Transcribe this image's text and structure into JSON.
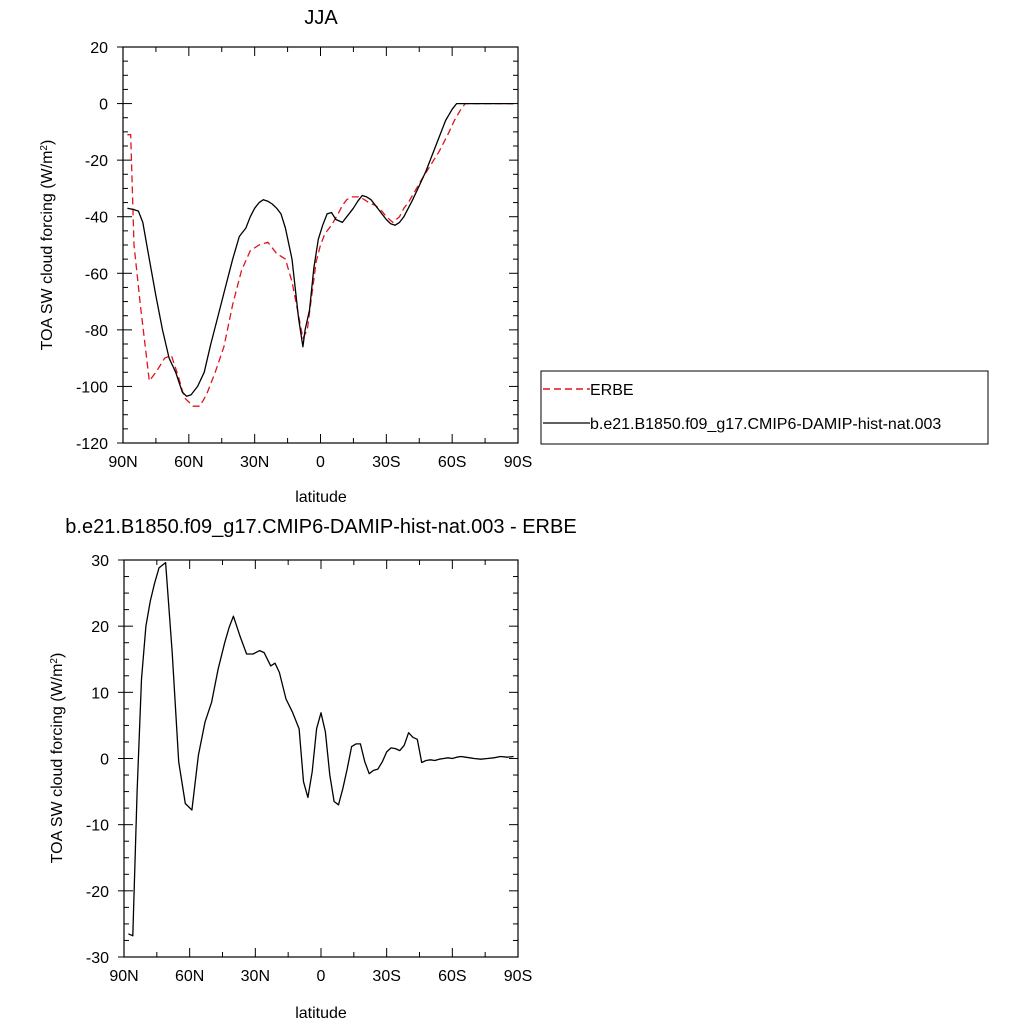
{
  "chart_data": [
    {
      "type": "line",
      "title": "JJA",
      "xlabel": "latitude",
      "ylabel_main": "TOA SW cloud forcing (W/m",
      "ylabel_sup": "2",
      "ylabel_close": ")",
      "xlim": [
        90,
        -90
      ],
      "ylim": [
        -120,
        20
      ],
      "x_ticks": [
        {
          "value": 90,
          "label": "90N"
        },
        {
          "value": 60,
          "label": "60N"
        },
        {
          "value": 30,
          "label": "30N"
        },
        {
          "value": 0,
          "label": "0"
        },
        {
          "value": -30,
          "label": "30S"
        },
        {
          "value": -60,
          "label": "60S"
        },
        {
          "value": -90,
          "label": "90S"
        }
      ],
      "y_ticks": [
        {
          "value": 20,
          "label": "20"
        },
        {
          "value": 0,
          "label": "0"
        },
        {
          "value": -20,
          "label": "-20"
        },
        {
          "value": -40,
          "label": "-40"
        },
        {
          "value": -60,
          "label": "-60"
        },
        {
          "value": -80,
          "label": "-80"
        },
        {
          "value": -100,
          "label": "-100"
        },
        {
          "value": -120,
          "label": "-120"
        }
      ],
      "legend_position": "right, outside plot",
      "series": [
        {
          "name": "ERBE",
          "color": "#e0141e",
          "dash": "dashed",
          "x": [
            88,
            86.5,
            85,
            82,
            78,
            75,
            71,
            68,
            65,
            62,
            58,
            55,
            52,
            48,
            44,
            40,
            36,
            32,
            28,
            24,
            20,
            16,
            13,
            10,
            8,
            6,
            4,
            2,
            0,
            -2,
            -5,
            -8,
            -10,
            -12,
            -14,
            -16,
            -18,
            -20,
            -22,
            -25,
            -28,
            -30,
            -33,
            -36,
            -38,
            -40,
            -43,
            -46,
            -50,
            -54,
            -58,
            -61,
            -64,
            -66,
            -68,
            -70,
            -73,
            -76,
            -80,
            -84,
            -88
          ],
          "y": [
            -11,
            -11,
            -50,
            -72,
            -98,
            -95,
            -90,
            -89,
            -96,
            -104,
            -107,
            -107,
            -103,
            -95,
            -86,
            -71,
            -59,
            -52,
            -50,
            -49,
            -53,
            -55,
            -63,
            -75,
            -83,
            -80,
            -68,
            -56,
            -50,
            -46,
            -43,
            -39,
            -36,
            -34,
            -33,
            -33,
            -33,
            -34,
            -35,
            -36,
            -38,
            -40,
            -42,
            -40,
            -37,
            -35,
            -31,
            -27,
            -22,
            -17,
            -11,
            -6,
            -2,
            0,
            0,
            0,
            0,
            0,
            0,
            0,
            0
          ]
        },
        {
          "name": "b.e21.B1850.f09_g17.CMIP6-DAMIP-hist-nat.003",
          "color": "#000000",
          "dash": "solid",
          "x": [
            88,
            85,
            83,
            81,
            78,
            75,
            72,
            69,
            66,
            63,
            61,
            59,
            56,
            53,
            50,
            47,
            44,
            40,
            37,
            34,
            32,
            30,
            28,
            26,
            24,
            22,
            20,
            18,
            16,
            13,
            10,
            8,
            7,
            5,
            3,
            1,
            -1,
            -3,
            -5,
            -7,
            -10,
            -12,
            -15,
            -17,
            -19,
            -21,
            -23,
            -25,
            -27,
            -30,
            -32,
            -34,
            -36,
            -38,
            -40,
            -42,
            -45,
            -48,
            -51,
            -54,
            -57,
            -60,
            -62,
            -64,
            -66,
            -68,
            -70,
            -73,
            -76,
            -80,
            -84,
            -88
          ],
          "y": [
            -37,
            -37.5,
            -38,
            -42,
            -55,
            -68,
            -80,
            -90,
            -95,
            -102,
            -103.5,
            -103,
            -100,
            -95,
            -85,
            -76,
            -67,
            -55,
            -47,
            -44,
            -40,
            -37,
            -35,
            -34,
            -34.5,
            -35.5,
            -37,
            -39,
            -44,
            -55,
            -76,
            -86,
            -80,
            -73,
            -58,
            -48,
            -43,
            -39,
            -38.5,
            -41,
            -42,
            -40,
            -37,
            -34.5,
            -32.5,
            -33,
            -34,
            -36,
            -38,
            -41,
            -42.5,
            -43,
            -42,
            -40,
            -37,
            -34,
            -29,
            -24,
            -18,
            -12,
            -6,
            -2,
            0,
            0,
            0,
            0,
            0,
            0,
            0,
            0,
            0,
            0
          ]
        }
      ]
    },
    {
      "type": "line",
      "title": "b.e21.B1850.f09_g17.CMIP6-DAMIP-hist-nat.003 - ERBE",
      "xlabel": "latitude",
      "ylabel_main": "TOA SW cloud forcing (W/m",
      "ylabel_sup": "2",
      "ylabel_close": ")",
      "xlim": [
        90,
        -90
      ],
      "ylim": [
        -30,
        30
      ],
      "x_ticks": [
        {
          "value": 90,
          "label": "90N"
        },
        {
          "value": 60,
          "label": "60N"
        },
        {
          "value": 30,
          "label": "30N"
        },
        {
          "value": 0,
          "label": "0"
        },
        {
          "value": -30,
          "label": "30S"
        },
        {
          "value": -60,
          "label": "60S"
        },
        {
          "value": -90,
          "label": "90S"
        }
      ],
      "y_ticks": [
        {
          "value": 30,
          "label": "30"
        },
        {
          "value": 20,
          "label": "20"
        },
        {
          "value": 10,
          "label": "10"
        },
        {
          "value": 0,
          "label": "0"
        },
        {
          "value": -10,
          "label": "-10"
        },
        {
          "value": -20,
          "label": "-20"
        },
        {
          "value": -30,
          "label": "-30"
        }
      ],
      "series": [
        {
          "name": "",
          "color": "#000000",
          "dash": "solid",
          "x": [
            88,
            86,
            84,
            82,
            80,
            78,
            76,
            74,
            71,
            68,
            65,
            62,
            59,
            56,
            53,
            50,
            47,
            44,
            42,
            40,
            37,
            34,
            31,
            28,
            26,
            23,
            21,
            19,
            16,
            13,
            10,
            8,
            6,
            4,
            2,
            0,
            -2,
            -4,
            -6,
            -8,
            -10,
            -12,
            -14,
            -16,
            -18,
            -20,
            -22,
            -24,
            -26,
            -28,
            -30,
            -32,
            -34,
            -36,
            -38,
            -40,
            -42,
            -44,
            -46,
            -48,
            -50,
            -52,
            -54,
            -56,
            -58,
            -60,
            -62,
            -64,
            -66,
            -68,
            -70,
            -73,
            -76,
            -79,
            -82,
            -85,
            -88
          ],
          "y": [
            -26.5,
            -26.8,
            -5,
            12,
            20,
            23.8,
            26.5,
            28.8,
            29.6,
            16,
            -0.5,
            -6.8,
            -7.8,
            0.5,
            5.5,
            8.5,
            13.5,
            17.5,
            19.8,
            21.5,
            18.5,
            15.8,
            15.8,
            16.3,
            16,
            14,
            14.4,
            13,
            9,
            7,
            4.5,
            -3.5,
            -5.9,
            -2,
            4.5,
            6.9,
            4,
            -2.5,
            -6.5,
            -7,
            -4.5,
            -1.5,
            1.8,
            2.2,
            2.2,
            -0.5,
            -2.3,
            -1.8,
            -1.6,
            -0.5,
            1,
            1.6,
            1.5,
            1.2,
            2,
            3.9,
            3.2,
            2.9,
            -0.6,
            -0.3,
            -0.2,
            -0.3,
            -0.1,
            0,
            0.1,
            0,
            0.2,
            0.3,
            0.2,
            0.1,
            0,
            -0.1,
            0,
            0.1,
            0.3,
            0.2,
            0.3
          ]
        }
      ]
    }
  ]
}
